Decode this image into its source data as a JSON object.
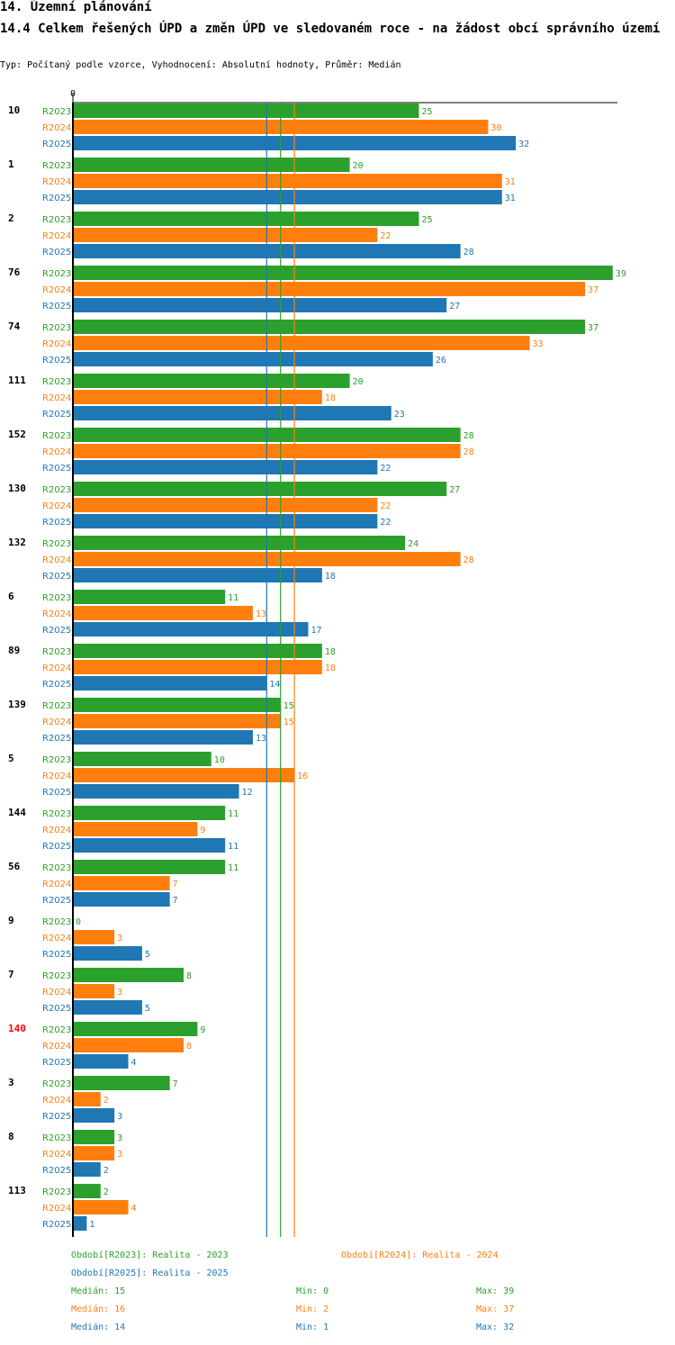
{
  "header": {
    "section": "14. Územní plánování",
    "title": "14.4 Celkem řešených ÚPD a změn ÚPD ve sledovaném roce - na žádost obcí správního území",
    "subtitle": "Typ: Počítaný podle vzorce, Vyhodnocení: Absolutní hodnoty, Průměr: Medián"
  },
  "colors": {
    "R2023": "#2ca02c",
    "R2024": "#ff7f0e",
    "R2025": "#1f77b4",
    "highlight": "#ff0000",
    "axis": "#000000"
  },
  "chart_data": {
    "type": "bar",
    "orientation": "horizontal",
    "axis_zero_label": "0",
    "xlim": [
      0,
      39
    ],
    "series_names": [
      "R2023",
      "R2024",
      "R2025"
    ],
    "categories": [
      {
        "label": "10",
        "highlight": false,
        "values": [
          25,
          30,
          32
        ]
      },
      {
        "label": "1",
        "highlight": false,
        "values": [
          20,
          31,
          31
        ]
      },
      {
        "label": "2",
        "highlight": false,
        "values": [
          25,
          22,
          28
        ]
      },
      {
        "label": "76",
        "highlight": false,
        "values": [
          39,
          37,
          27
        ]
      },
      {
        "label": "74",
        "highlight": false,
        "values": [
          37,
          33,
          26
        ]
      },
      {
        "label": "111",
        "highlight": false,
        "values": [
          20,
          18,
          23
        ]
      },
      {
        "label": "152",
        "highlight": false,
        "values": [
          28,
          28,
          22
        ]
      },
      {
        "label": "130",
        "highlight": false,
        "values": [
          27,
          22,
          22
        ]
      },
      {
        "label": "132",
        "highlight": false,
        "values": [
          24,
          28,
          18
        ]
      },
      {
        "label": "6",
        "highlight": false,
        "values": [
          11,
          13,
          17
        ]
      },
      {
        "label": "89",
        "highlight": false,
        "values": [
          18,
          18,
          14
        ]
      },
      {
        "label": "139",
        "highlight": false,
        "values": [
          15,
          15,
          13
        ]
      },
      {
        "label": "5",
        "highlight": false,
        "values": [
          10,
          16,
          12
        ]
      },
      {
        "label": "144",
        "highlight": false,
        "values": [
          11,
          9,
          11
        ]
      },
      {
        "label": "56",
        "highlight": false,
        "values": [
          11,
          7,
          7
        ]
      },
      {
        "label": "9",
        "highlight": false,
        "values": [
          0,
          3,
          5
        ]
      },
      {
        "label": "7",
        "highlight": false,
        "values": [
          8,
          3,
          5
        ]
      },
      {
        "label": "140",
        "highlight": true,
        "values": [
          9,
          8,
          4
        ]
      },
      {
        "label": "3",
        "highlight": false,
        "values": [
          7,
          2,
          3
        ]
      },
      {
        "label": "8",
        "highlight": false,
        "values": [
          3,
          3,
          2
        ]
      },
      {
        "label": "113",
        "highlight": false,
        "values": [
          2,
          4,
          1
        ]
      }
    ],
    "median_lines": [
      {
        "series": "R2023",
        "value": 15
      },
      {
        "series": "R2024",
        "value": 16
      },
      {
        "series": "R2025",
        "value": 14
      }
    ]
  },
  "legend": {
    "periods": [
      {
        "series": "R2023",
        "label": "Období[R2023]: Realita - 2023"
      },
      {
        "series": "R2024",
        "label": "Období[R2024]: Realita - 2024"
      },
      {
        "series": "R2025",
        "label": "Období[R2025]: Realita - 2025"
      }
    ],
    "stats": [
      {
        "series": "R2023",
        "median": "Medián: 15",
        "min": "Min: 0",
        "max": "Max: 39"
      },
      {
        "series": "R2024",
        "median": "Medián: 16",
        "min": "Min: 2",
        "max": "Max: 37"
      },
      {
        "series": "R2025",
        "median": "Medián: 14",
        "min": "Min: 1",
        "max": "Max: 32"
      }
    ]
  }
}
